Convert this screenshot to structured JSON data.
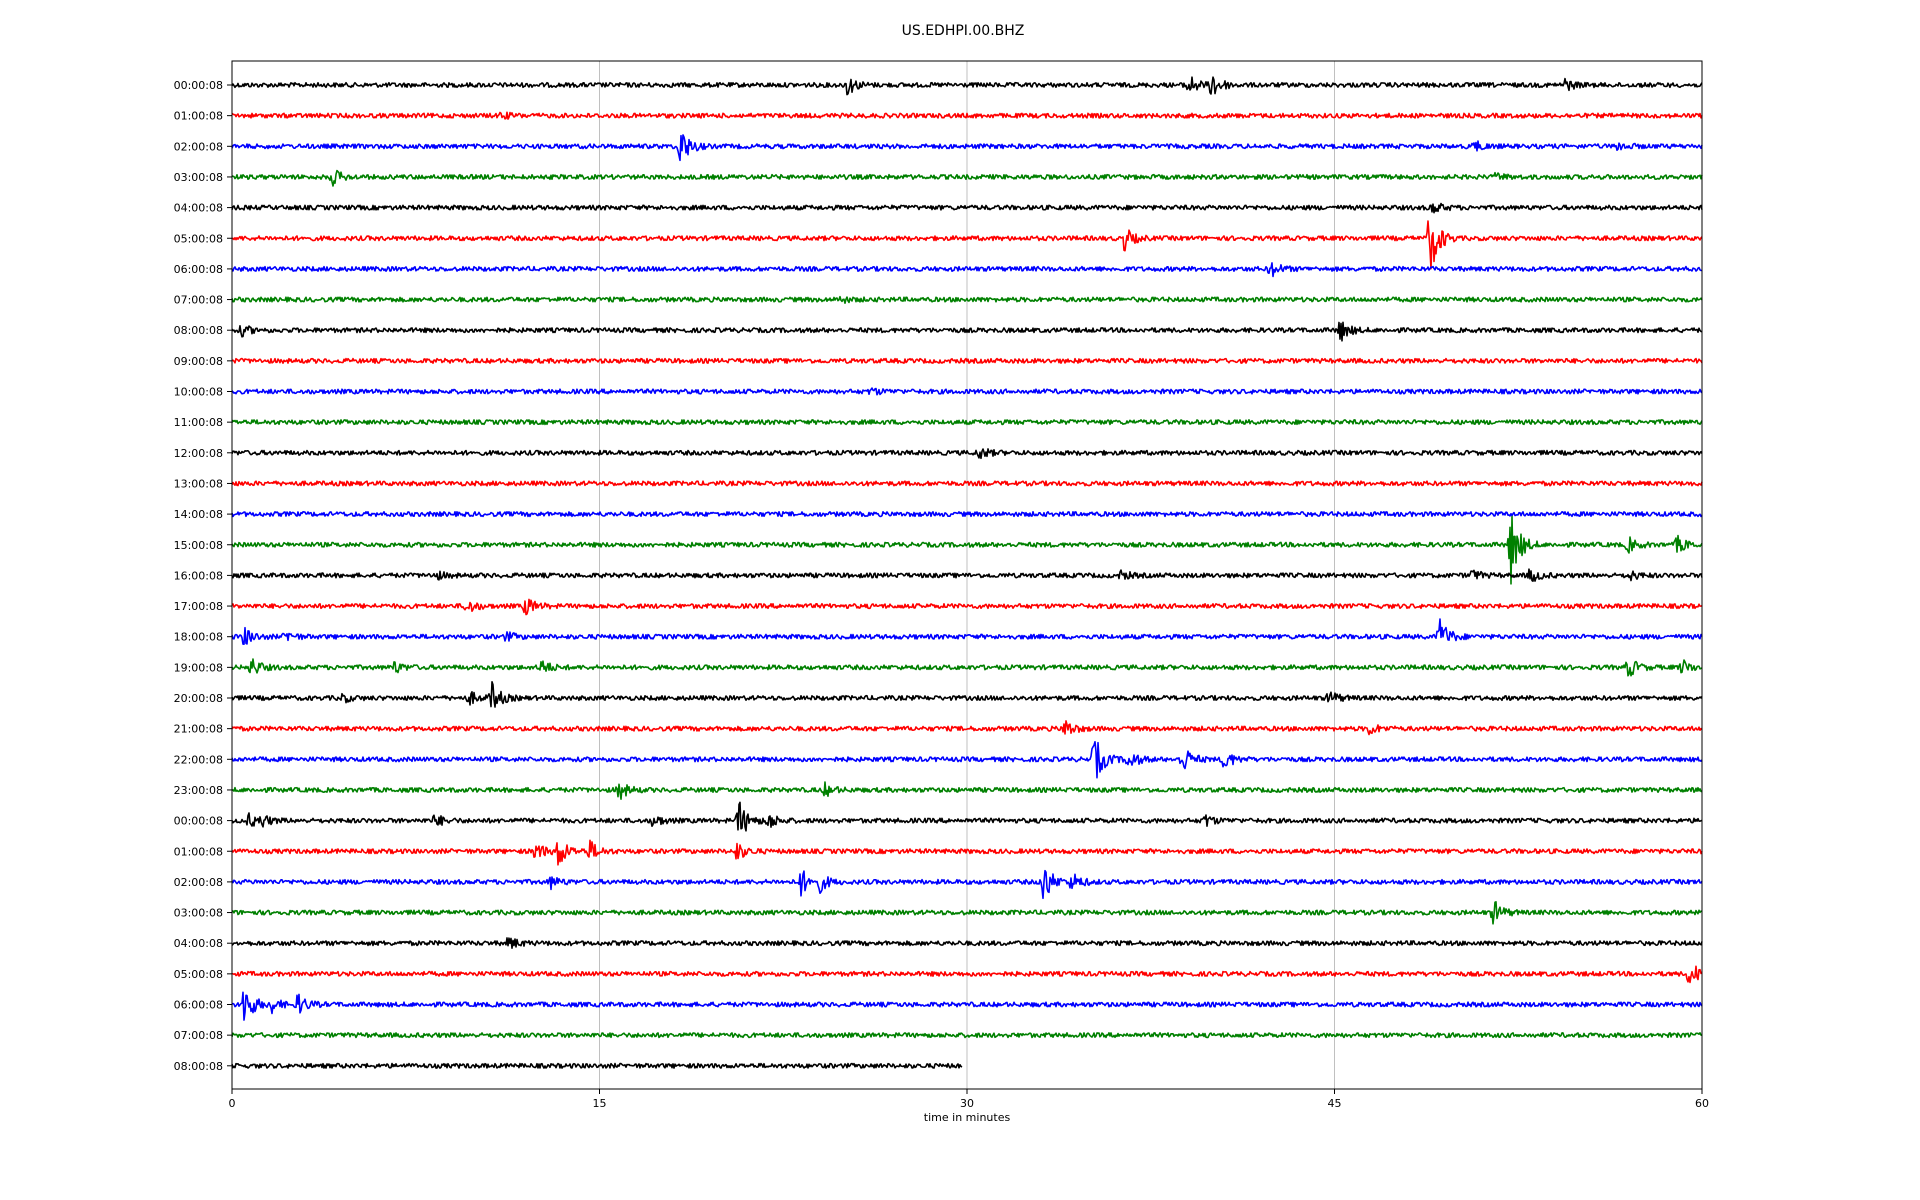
{
  "chart_data": {
    "type": "line",
    "title": "US.EDHPI.00.BHZ",
    "xlabel": "time in minutes",
    "ylabel": "",
    "xlim": [
      0,
      60
    ],
    "x_ticks": [
      0,
      15,
      30,
      45,
      60
    ],
    "x_tick_labels": [
      "0",
      "15",
      "30",
      "45",
      "60"
    ],
    "grid": "vertical lines at x ticks",
    "trace_colors": [
      "#000000",
      "#ff0000",
      "#0000ff",
      "#008000"
    ],
    "rows": [
      {
        "label": "00:00:08",
        "color": "#000000",
        "end_min": 60,
        "events": [
          {
            "t": 25.1,
            "amp": 10
          },
          {
            "t": 39.0,
            "amp": 12
          },
          {
            "t": 40.0,
            "amp": 14
          },
          {
            "t": 54.4,
            "amp": 6
          }
        ]
      },
      {
        "label": "01:00:08",
        "color": "#ff0000",
        "end_min": 60,
        "events": [
          {
            "t": 11.0,
            "amp": 3
          }
        ]
      },
      {
        "label": "02:00:08",
        "color": "#0000ff",
        "end_min": 60,
        "events": [
          {
            "t": 18.3,
            "amp": 20
          },
          {
            "t": 50.7,
            "amp": 5
          },
          {
            "t": 56.6,
            "amp": 4
          }
        ]
      },
      {
        "label": "03:00:08",
        "color": "#008000",
        "end_min": 60,
        "events": [
          {
            "t": 4.1,
            "amp": 8
          },
          {
            "t": 51.6,
            "amp": 3
          }
        ]
      },
      {
        "label": "04:00:08",
        "color": "#000000",
        "end_min": 60,
        "events": [
          {
            "t": 49.0,
            "amp": 6
          }
        ]
      },
      {
        "label": "05:00:08",
        "color": "#ff0000",
        "end_min": 60,
        "events": [
          {
            "t": 36.4,
            "amp": 12
          },
          {
            "t": 48.9,
            "amp": 36
          }
        ]
      },
      {
        "label": "06:00:08",
        "color": "#0000ff",
        "end_min": 60,
        "events": [
          {
            "t": 42.4,
            "amp": 8
          }
        ]
      },
      {
        "label": "07:00:08",
        "color": "#008000",
        "end_min": 60,
        "events": [
          {
            "t": 24.8,
            "amp": 3
          }
        ]
      },
      {
        "label": "08:00:08",
        "color": "#000000",
        "end_min": 60,
        "events": [
          {
            "t": 0.4,
            "amp": 5
          },
          {
            "t": 45.2,
            "amp": 12
          }
        ]
      },
      {
        "label": "09:00:08",
        "color": "#ff0000",
        "end_min": 60,
        "events": []
      },
      {
        "label": "10:00:08",
        "color": "#0000ff",
        "end_min": 60,
        "events": [
          {
            "t": 26.1,
            "amp": 3
          }
        ]
      },
      {
        "label": "11:00:08",
        "color": "#008000",
        "end_min": 60,
        "events": []
      },
      {
        "label": "12:00:08",
        "color": "#000000",
        "end_min": 60,
        "events": [
          {
            "t": 30.5,
            "amp": 6
          }
        ]
      },
      {
        "label": "13:00:08",
        "color": "#ff0000",
        "end_min": 60,
        "events": []
      },
      {
        "label": "14:00:08",
        "color": "#0000ff",
        "end_min": 60,
        "events": []
      },
      {
        "label": "15:00:08",
        "color": "#008000",
        "end_min": 60,
        "events": [
          {
            "t": 52.2,
            "amp": 38
          },
          {
            "t": 57.0,
            "amp": 7
          },
          {
            "t": 59.0,
            "amp": 8
          }
        ]
      },
      {
        "label": "16:00:08",
        "color": "#000000",
        "end_min": 60,
        "events": [
          {
            "t": 8.3,
            "amp": 4
          },
          {
            "t": 36.3,
            "amp": 4
          },
          {
            "t": 50.6,
            "amp": 5
          },
          {
            "t": 53.0,
            "amp": 7
          },
          {
            "t": 57.0,
            "amp": 5
          }
        ]
      },
      {
        "label": "17:00:08",
        "color": "#ff0000",
        "end_min": 60,
        "events": [
          {
            "t": 9.6,
            "amp": 7
          },
          {
            "t": 12.0,
            "amp": 9
          }
        ]
      },
      {
        "label": "18:00:08",
        "color": "#0000ff",
        "end_min": 60,
        "events": [
          {
            "t": 0.5,
            "amp": 9
          },
          {
            "t": 2.2,
            "amp": 5
          },
          {
            "t": 11.2,
            "amp": 4
          },
          {
            "t": 49.3,
            "amp": 18
          }
        ]
      },
      {
        "label": "19:00:08",
        "color": "#008000",
        "end_min": 60,
        "events": [
          {
            "t": 0.8,
            "amp": 9
          },
          {
            "t": 6.6,
            "amp": 6
          },
          {
            "t": 12.6,
            "amp": 8
          },
          {
            "t": 57.0,
            "amp": 10
          },
          {
            "t": 59.2,
            "amp": 7
          }
        ]
      },
      {
        "label": "20:00:08",
        "color": "#000000",
        "end_min": 60,
        "events": [
          {
            "t": 4.5,
            "amp": 4
          },
          {
            "t": 9.7,
            "amp": 6
          },
          {
            "t": 10.6,
            "amp": 15
          },
          {
            "t": 44.8,
            "amp": 7
          }
        ]
      },
      {
        "label": "21:00:08",
        "color": "#ff0000",
        "end_min": 60,
        "events": [
          {
            "t": 34.0,
            "amp": 9
          },
          {
            "t": 46.4,
            "amp": 6
          }
        ]
      },
      {
        "label": "22:00:08",
        "color": "#0000ff",
        "end_min": 60,
        "events": [
          {
            "t": 35.2,
            "amp": 24
          },
          {
            "t": 36.6,
            "amp": 10
          },
          {
            "t": 38.8,
            "amp": 14
          },
          {
            "t": 40.5,
            "amp": 10
          }
        ]
      },
      {
        "label": "23:00:08",
        "color": "#008000",
        "end_min": 60,
        "events": [
          {
            "t": 15.8,
            "amp": 9
          },
          {
            "t": 24.2,
            "amp": 6
          }
        ]
      },
      {
        "label": "00:00:08",
        "color": "#000000",
        "end_min": 60,
        "events": [
          {
            "t": 0.7,
            "amp": 6
          },
          {
            "t": 1.2,
            "amp": 5
          },
          {
            "t": 8.3,
            "amp": 6
          },
          {
            "t": 17.2,
            "amp": 6
          },
          {
            "t": 20.7,
            "amp": 20
          },
          {
            "t": 21.9,
            "amp": 8
          },
          {
            "t": 39.7,
            "amp": 6
          }
        ]
      },
      {
        "label": "01:00:08",
        "color": "#ff0000",
        "end_min": 60,
        "events": [
          {
            "t": 12.4,
            "amp": 9
          },
          {
            "t": 13.3,
            "amp": 16
          },
          {
            "t": 14.6,
            "amp": 10
          },
          {
            "t": 20.6,
            "amp": 9
          }
        ]
      },
      {
        "label": "02:00:08",
        "color": "#0000ff",
        "end_min": 60,
        "events": [
          {
            "t": 13.0,
            "amp": 6
          },
          {
            "t": 23.2,
            "amp": 14
          },
          {
            "t": 24.0,
            "amp": 8
          },
          {
            "t": 33.1,
            "amp": 22
          },
          {
            "t": 34.3,
            "amp": 9
          }
        ]
      },
      {
        "label": "03:00:08",
        "color": "#008000",
        "end_min": 60,
        "events": [
          {
            "t": 51.5,
            "amp": 12
          }
        ]
      },
      {
        "label": "04:00:08",
        "color": "#000000",
        "end_min": 60,
        "events": [
          {
            "t": 11.3,
            "amp": 6
          }
        ]
      },
      {
        "label": "05:00:08",
        "color": "#ff0000",
        "end_min": 60,
        "events": [
          {
            "t": 59.5,
            "amp": 14
          }
        ]
      },
      {
        "label": "06:00:08",
        "color": "#0000ff",
        "end_min": 60,
        "events": [
          {
            "t": 0.5,
            "amp": 22
          },
          {
            "t": 1.6,
            "amp": 7
          },
          {
            "t": 2.7,
            "amp": 10
          }
        ]
      },
      {
        "label": "07:00:08",
        "color": "#008000",
        "end_min": 60,
        "events": []
      },
      {
        "label": "08:00:08",
        "color": "#000000",
        "end_min": 29.8,
        "events": []
      }
    ]
  }
}
